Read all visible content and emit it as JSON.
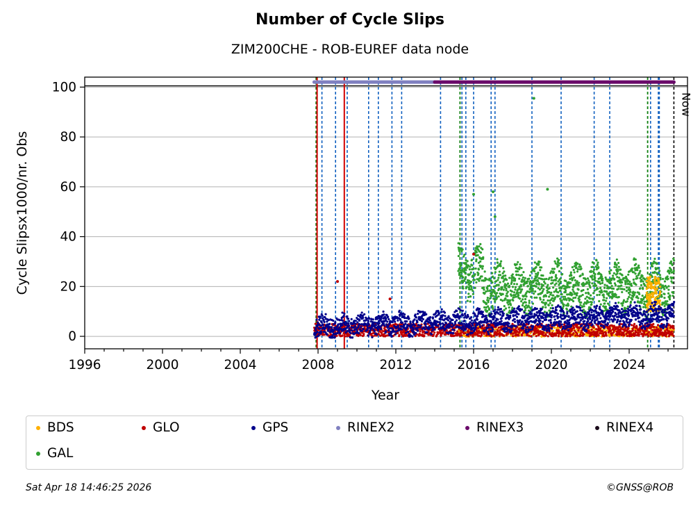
{
  "chart_data": {
    "type": "scatter",
    "title": "Number of Cycle Slips",
    "subtitle": "ZIM200CHE - ROB-EUREF data node",
    "xlabel": "Year",
    "ylabel": "Cycle Slipsx1000/nr. Obs",
    "xlim": [
      1996,
      2027.0
    ],
    "ylim": [
      -5,
      104
    ],
    "xticks": [
      1996,
      2000,
      2004,
      2008,
      2012,
      2016,
      2020,
      2024
    ],
    "yticks": [
      0,
      20,
      40,
      60,
      80,
      100
    ],
    "grid": "y",
    "now_label": "Now",
    "now_year": 2026.3,
    "reference_line_y": 100.5,
    "series": [
      {
        "name": "BDS",
        "color": "#ffb000",
        "start": 2015.2,
        "end": 2026.3,
        "base": 1.5,
        "spread": 2.0
      },
      {
        "name": "GLO",
        "color": "#c00000",
        "start": 2007.8,
        "end": 2026.3,
        "base": 2.0,
        "spread": 2.5
      },
      {
        "name": "GPS",
        "color": "#00008b",
        "start": 2007.8,
        "end": 2026.3,
        "base": 3.0,
        "spread": 4.0
      },
      {
        "name": "RINEX2",
        "color": "#8080c0",
        "start": 2007.8,
        "end": 2014.0,
        "y": 102
      },
      {
        "name": "RINEX3",
        "color": "#6a0a6a",
        "start": 2014.0,
        "end": 2026.3,
        "y": 102
      },
      {
        "name": "RINEX4",
        "color": "#1a0a1a"
      },
      {
        "name": "GAL",
        "color": "#30a030",
        "start": 2015.2,
        "end": 2026.3,
        "base": 18.0,
        "spread": 8.0
      }
    ],
    "gal_outliers": [
      [
        2019.1,
        95.5
      ],
      [
        2019.8,
        59
      ],
      [
        2016.0,
        57
      ],
      [
        2017.0,
        58
      ],
      [
        2017.1,
        48
      ]
    ],
    "glo_outliers": [
      [
        2009.0,
        22
      ],
      [
        2011.7,
        15
      ],
      [
        2016.0,
        33
      ]
    ],
    "event_lines_blue": [
      2008.2,
      2008.9,
      2009.5,
      2010.6,
      2011.1,
      2011.8,
      2012.3,
      2014.3,
      2015.4,
      2015.6,
      2016.0,
      2016.9,
      2017.1,
      2019.0,
      2020.5,
      2022.2,
      2023.0,
      2025.1,
      2025.5,
      2025.55
    ],
    "event_lines_green": [
      2007.9,
      2015.3,
      2024.95
    ],
    "event_lines_red": [
      2007.95,
      2009.35
    ]
  },
  "legend": {
    "items": [
      {
        "label": "BDS",
        "color": "#ffb000"
      },
      {
        "label": "GLO",
        "color": "#c00000"
      },
      {
        "label": "GPS",
        "color": "#00008b"
      },
      {
        "label": "RINEX2",
        "color": "#8080c0"
      },
      {
        "label": "RINEX3",
        "color": "#6a0a6a"
      },
      {
        "label": "RINEX4",
        "color": "#1a0a1a"
      },
      {
        "label": "GAL",
        "color": "#30a030"
      }
    ]
  },
  "footer": {
    "timestamp": "Sat Apr 18 14:46:25 2026",
    "credit": "©GNSS@ROB"
  }
}
